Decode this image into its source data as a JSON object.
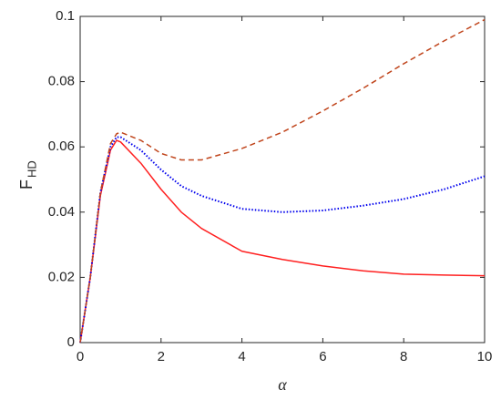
{
  "chart_data": {
    "type": "line",
    "xlabel": "α",
    "ylabel": "F",
    "ylabel_sub": "HD",
    "x": [
      0,
      0.25,
      0.5,
      0.75,
      0.9,
      1,
      1.5,
      2,
      2.5,
      3,
      4,
      5,
      6,
      7,
      8,
      9,
      10
    ],
    "series": [
      {
        "color": "#ff2020",
        "style": "solid",
        "values": [
          0,
          0.02,
          0.045,
          0.059,
          0.062,
          0.0615,
          0.055,
          0.047,
          0.04,
          0.035,
          0.028,
          0.0255,
          0.0235,
          0.022,
          0.021,
          0.0207,
          0.0205
        ]
      },
      {
        "color": "#0000ee",
        "style": "dotted",
        "values": [
          0,
          0.02,
          0.046,
          0.06,
          0.063,
          0.063,
          0.059,
          0.053,
          0.048,
          0.045,
          0.041,
          0.04,
          0.0405,
          0.042,
          0.044,
          0.047,
          0.051
        ]
      },
      {
        "color": "#c0451c",
        "style": "dashed",
        "values": [
          0,
          0.02,
          0.046,
          0.061,
          0.064,
          0.0645,
          0.062,
          0.058,
          0.056,
          0.056,
          0.0595,
          0.0645,
          0.071,
          0.078,
          0.0855,
          0.0925,
          0.099
        ]
      }
    ],
    "xlim": [
      0,
      10
    ],
    "xticks": [
      0,
      2,
      4,
      6,
      8,
      10
    ],
    "ylim": [
      0,
      0.1
    ],
    "yticks": [
      0,
      0.02,
      0.04,
      0.06,
      0.08,
      0.1
    ]
  }
}
